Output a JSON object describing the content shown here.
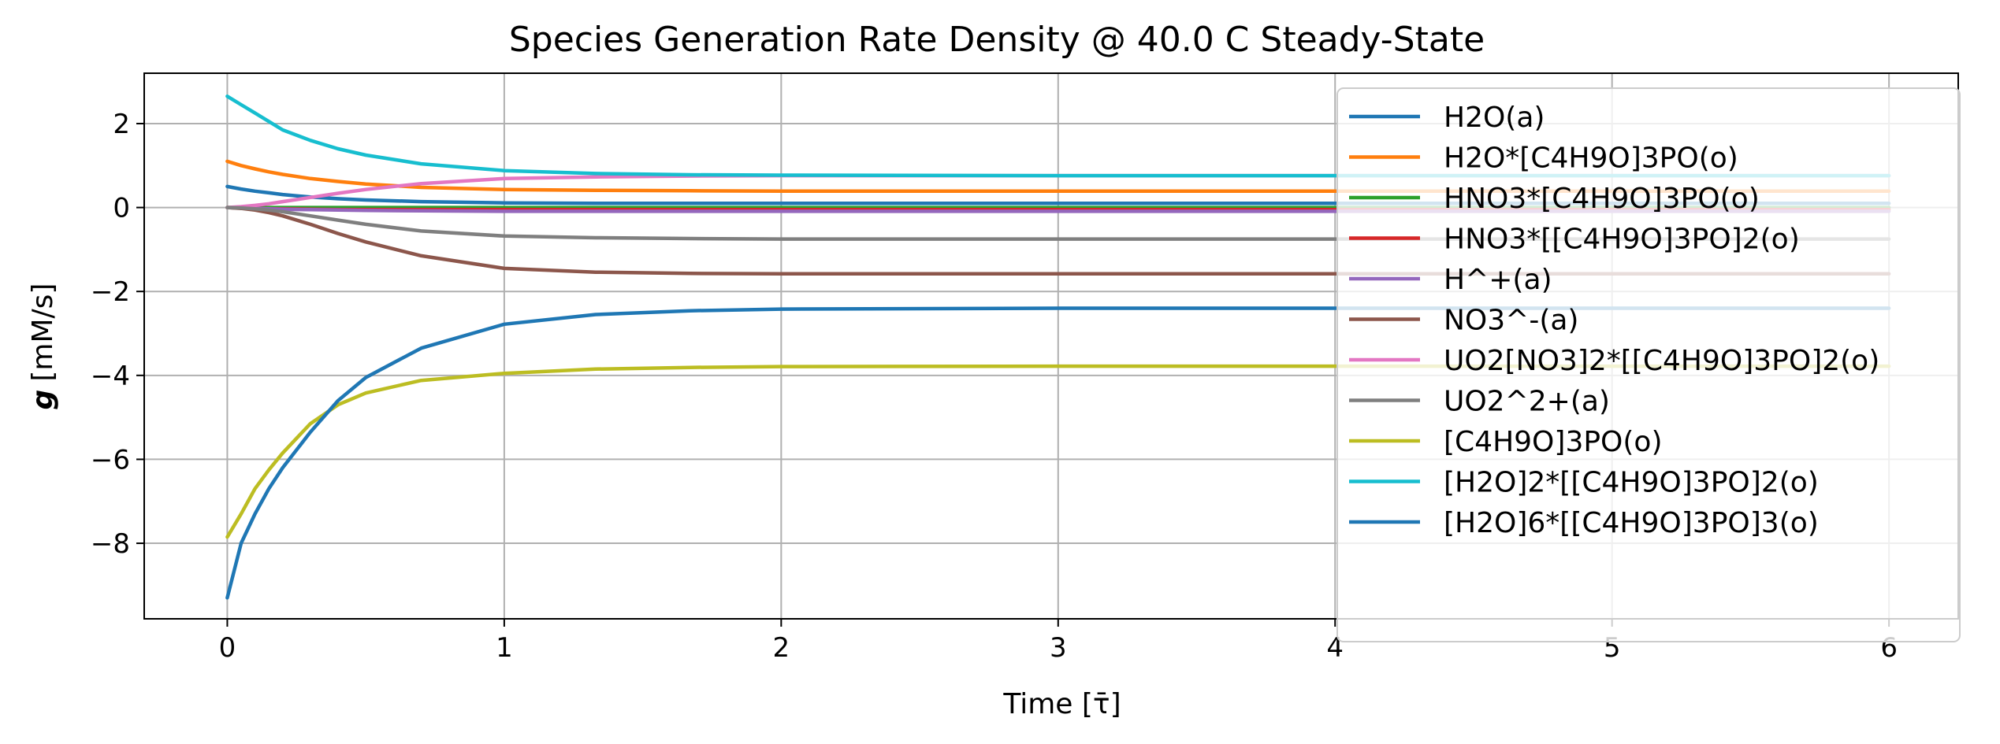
{
  "chart_data": {
    "type": "line",
    "title": "Species Generation Rate Density @ 40.0 C Steady-State",
    "xlabel": "Time [τ̄]",
    "ylabel_symbol": "g",
    "ylabel_unit": "[mM/s]",
    "xlim": [
      -0.3,
      6.25
    ],
    "ylim": [
      -9.8,
      3.2
    ],
    "xticks": [
      0,
      1,
      2,
      3,
      4,
      5,
      6
    ],
    "yticks": [
      2,
      0,
      -2,
      -4,
      -6,
      -8
    ],
    "ytick_labels": [
      "2",
      "0",
      "−2",
      "−4",
      "−6",
      "−8"
    ],
    "grid": true,
    "legend_position": "upper-right",
    "x": [
      0,
      0.05,
      0.1,
      0.15,
      0.2,
      0.3,
      0.4,
      0.5,
      0.7,
      1.0,
      1.33,
      1.67,
      2.0,
      3.0,
      4.0,
      5.0,
      6.0
    ],
    "series": [
      {
        "name": "H2O(a)",
        "color": "#1f77b4",
        "values": [
          0.5,
          0.44,
          0.39,
          0.35,
          0.31,
          0.25,
          0.21,
          0.18,
          0.14,
          0.11,
          0.1,
          0.1,
          0.1,
          0.1,
          0.1,
          0.1,
          0.1
        ]
      },
      {
        "name": "H2O*[C4H9O]3PO(o)",
        "color": "#ff7f0e",
        "values": [
          1.1,
          1.0,
          0.92,
          0.85,
          0.79,
          0.69,
          0.62,
          0.56,
          0.48,
          0.43,
          0.41,
          0.4,
          0.39,
          0.39,
          0.39,
          0.39,
          0.39
        ]
      },
      {
        "name": "HNO3*[C4H9O]3PO(o)",
        "color": "#2ca02c",
        "values": [
          0.0,
          0.0,
          0.0,
          0.0,
          0.0,
          0.0,
          0.0,
          0.0,
          0.0,
          0.0,
          0.0,
          0.0,
          0.0,
          0.0,
          0.0,
          0.0,
          0.0
        ]
      },
      {
        "name": "HNO3*[[C4H9O]3PO]2(o)",
        "color": "#d62728",
        "values": [
          0.0,
          -0.01,
          -0.02,
          -0.03,
          -0.03,
          -0.04,
          -0.05,
          -0.05,
          -0.05,
          -0.05,
          -0.05,
          -0.05,
          -0.05,
          -0.05,
          -0.05,
          -0.05,
          -0.05
        ]
      },
      {
        "name": "H^+(a)",
        "color": "#9467bd",
        "values": [
          0.0,
          -0.01,
          -0.02,
          -0.03,
          -0.04,
          -0.05,
          -0.06,
          -0.07,
          -0.08,
          -0.09,
          -0.09,
          -0.09,
          -0.09,
          -0.09,
          -0.09,
          -0.09,
          -0.09
        ]
      },
      {
        "name": "NO3^-(a)",
        "color": "#8c564b",
        "values": [
          0.0,
          -0.02,
          -0.06,
          -0.12,
          -0.2,
          -0.4,
          -0.62,
          -0.82,
          -1.15,
          -1.45,
          -1.54,
          -1.57,
          -1.58,
          -1.58,
          -1.58,
          -1.58,
          -1.58
        ]
      },
      {
        "name": "UO2[NO3]2*[[C4H9O]3PO]2(o)",
        "color": "#e377c2",
        "values": [
          0.0,
          0.02,
          0.05,
          0.09,
          0.14,
          0.24,
          0.34,
          0.43,
          0.57,
          0.69,
          0.73,
          0.75,
          0.76,
          0.76,
          0.76,
          0.76,
          0.76
        ]
      },
      {
        "name": "UO2^2+(a)",
        "color": "#7f7f7f",
        "values": [
          0.0,
          -0.01,
          -0.03,
          -0.06,
          -0.1,
          -0.2,
          -0.3,
          -0.4,
          -0.56,
          -0.68,
          -0.72,
          -0.74,
          -0.75,
          -0.75,
          -0.75,
          -0.75,
          -0.75
        ]
      },
      {
        "name": "[C4H9O]3PO(o)",
        "color": "#bcbd22",
        "values": [
          -7.85,
          -7.3,
          -6.7,
          -6.25,
          -5.85,
          -5.15,
          -4.7,
          -4.42,
          -4.12,
          -3.95,
          -3.85,
          -3.81,
          -3.79,
          -3.78,
          -3.78,
          -3.78,
          -3.78
        ]
      },
      {
        "name": "[H2O]2*[[C4H9O]3PO]2(o)",
        "color": "#17becf",
        "values": [
          2.65,
          2.45,
          2.25,
          2.05,
          1.85,
          1.6,
          1.4,
          1.25,
          1.04,
          0.88,
          0.81,
          0.78,
          0.77,
          0.76,
          0.76,
          0.76,
          0.76
        ]
      },
      {
        "name": "[H2O]6*[[C4H9O]3PO]3(o)",
        "color": "#1f77b4",
        "values": [
          -9.3,
          -8.0,
          -7.3,
          -6.7,
          -6.2,
          -5.35,
          -4.6,
          -4.05,
          -3.35,
          -2.78,
          -2.55,
          -2.46,
          -2.42,
          -2.4,
          -2.4,
          -2.4,
          -2.4
        ]
      }
    ]
  }
}
